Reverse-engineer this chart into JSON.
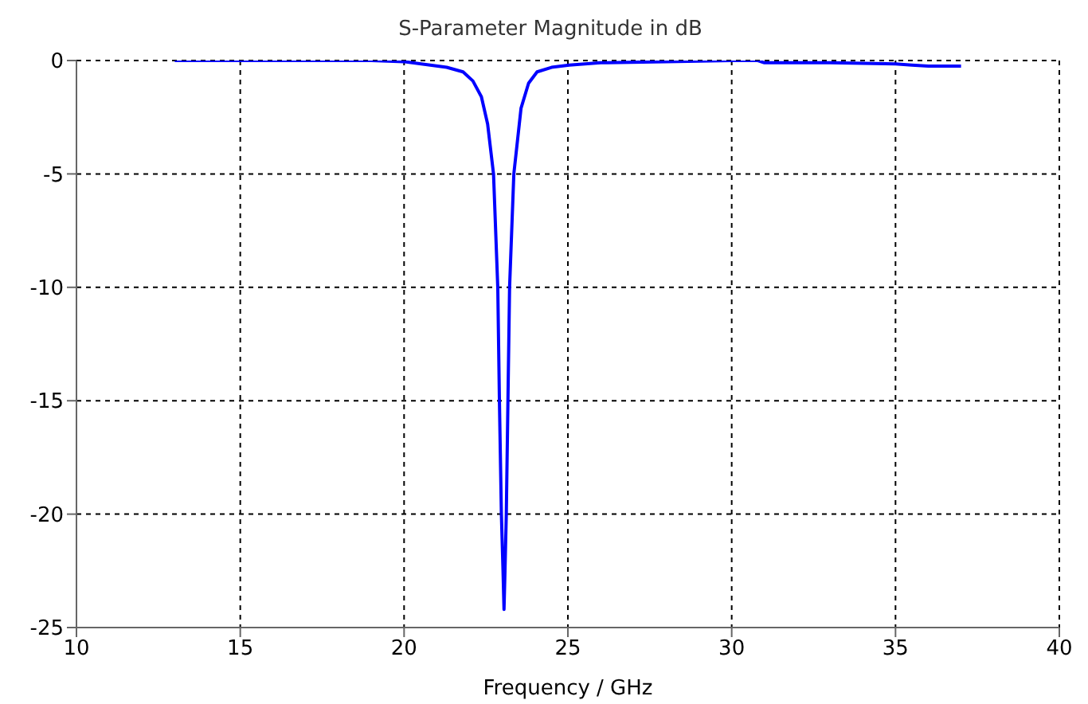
{
  "chart_data": {
    "type": "line",
    "title": "S-Parameter Magnitude in dB",
    "xlabel": "Frequency / GHz",
    "x": [
      13,
      16,
      19,
      20,
      20.8,
      21.3,
      21.8,
      22.1,
      22.36,
      22.55,
      22.73,
      22.86,
      22.91,
      22.97,
      23.02,
      23.05,
      23.08,
      23.12,
      23.17,
      23.22,
      23.35,
      23.57,
      23.8,
      24.06,
      24.5,
      25.04,
      26,
      28,
      30,
      30.8,
      31,
      33,
      35,
      35.5,
      36,
      37
    ],
    "series": [
      {
        "color": "#0000ff",
        "values": [
          0,
          0,
          0,
          -0.05,
          -0.2,
          -0.3,
          -0.5,
          -0.9,
          -1.6,
          -2.8,
          -5,
          -10,
          -15,
          -20,
          -22.5,
          -24.2,
          -22.5,
          -20,
          -15,
          -10,
          -5,
          -2.1,
          -1,
          -0.5,
          -0.3,
          -0.2,
          -0.1,
          -0.05,
          0,
          0,
          -0.1,
          -0.1,
          -0.15,
          -0.2,
          -0.25,
          -0.25
        ]
      }
    ],
    "xlim": [
      10,
      40
    ],
    "xticks": [
      10,
      15,
      20,
      25,
      30,
      35,
      40
    ],
    "ylim": [
      -25,
      0
    ],
    "yticks": [
      -25,
      -20,
      -15,
      -10,
      -5,
      0
    ],
    "grid": true,
    "marker": "none",
    "line_style": "solid"
  }
}
